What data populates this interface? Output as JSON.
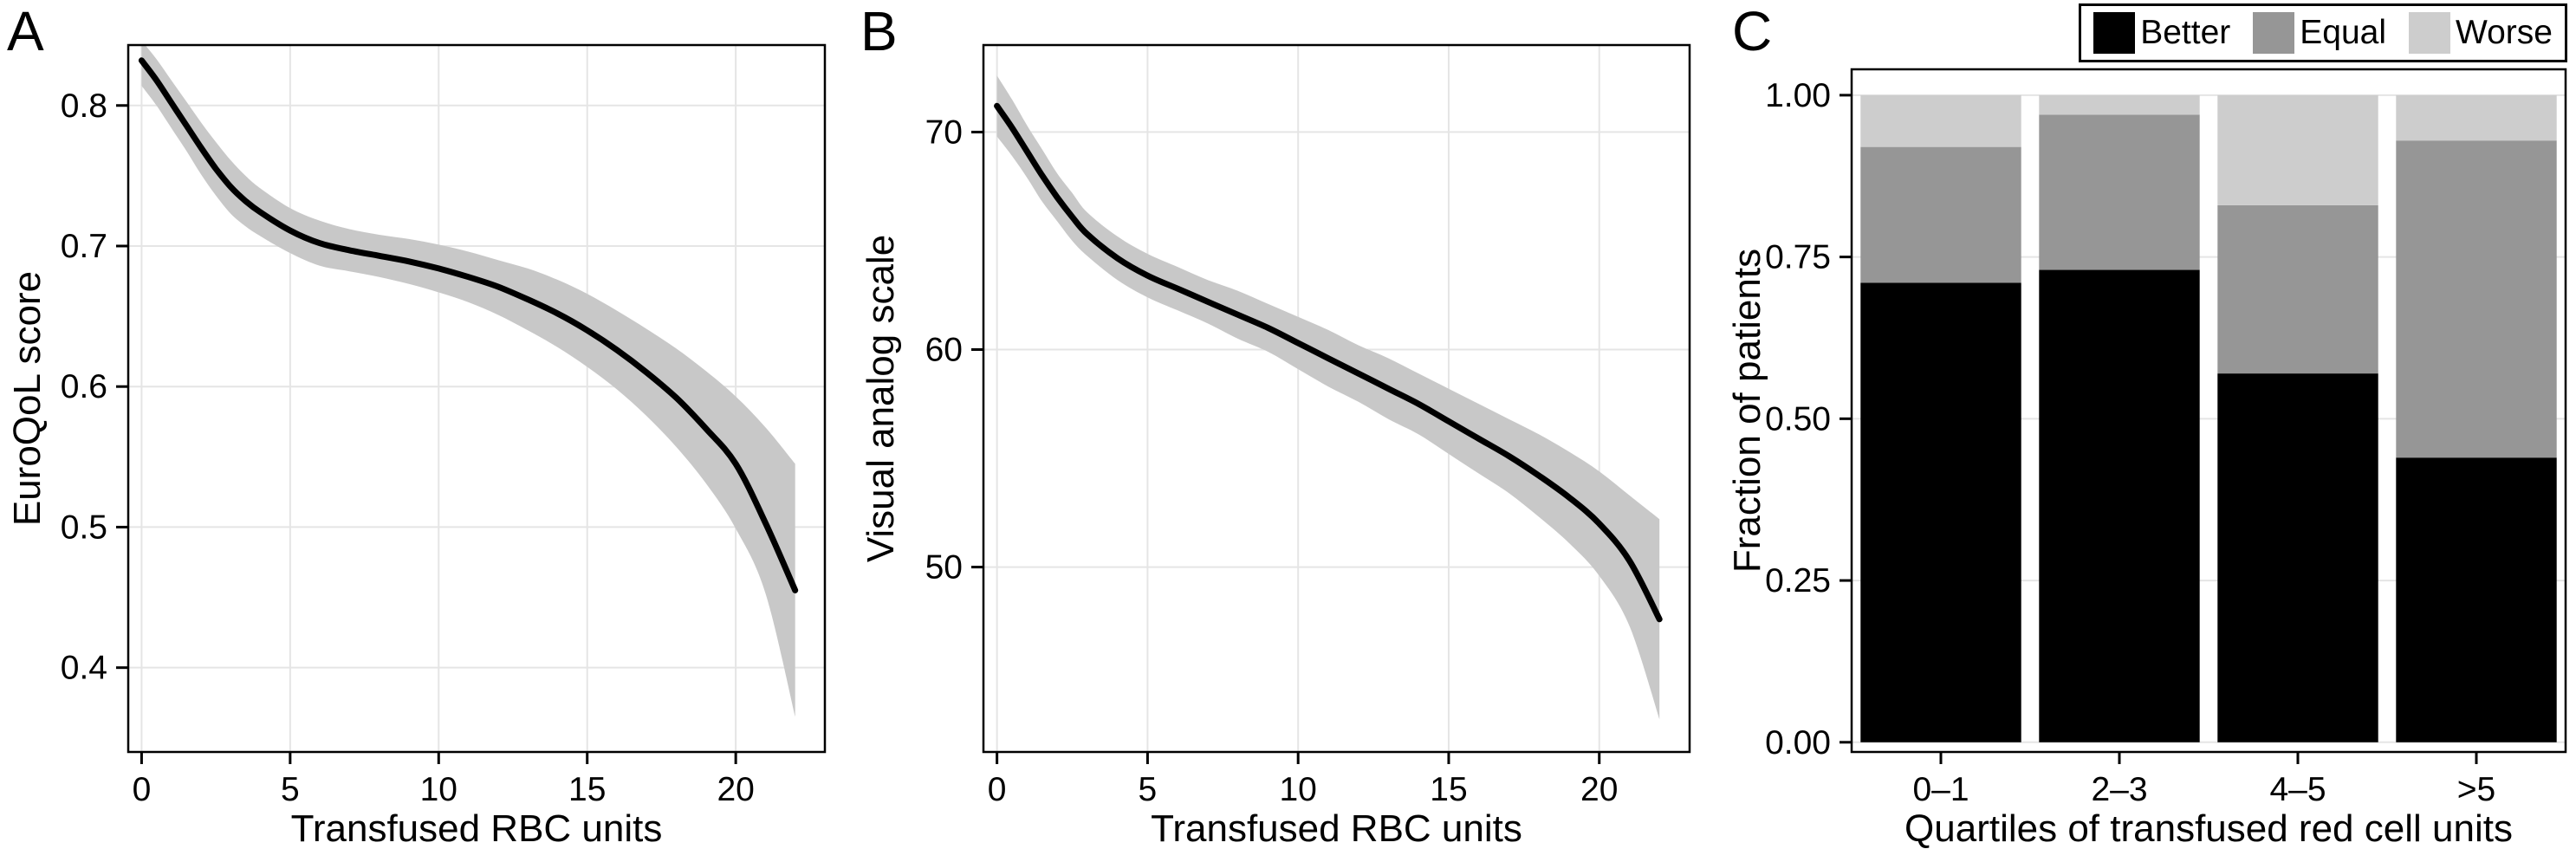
{
  "figure": {
    "panels": [
      {
        "label": "A"
      },
      {
        "label": "B"
      },
      {
        "label": "C"
      }
    ]
  },
  "chart_data": [
    {
      "type": "line",
      "panel": "A",
      "xlabel": "Transfused RBC units",
      "ylabel": "EuroQoL score",
      "xlim": [
        -0.45,
        23
      ],
      "ylim": [
        0.34,
        0.843
      ],
      "xticks": [
        0,
        5,
        10,
        15,
        20
      ],
      "yticks": [
        0.4,
        0.5,
        0.6,
        0.7,
        0.8
      ],
      "ytick_labels": [
        "0.4",
        "0.5",
        "0.6",
        "0.7",
        "0.8"
      ],
      "grid": true,
      "legend": "none",
      "line_color": "#000000",
      "band_color": "#c8c8c8",
      "x": [
        0,
        0.5,
        1,
        1.5,
        2,
        2.5,
        3,
        3.5,
        4,
        5,
        6,
        7,
        8,
        9,
        10,
        11,
        12,
        13,
        14,
        15,
        16,
        17,
        18,
        19,
        20,
        21,
        22
      ],
      "y": [
        0.832,
        0.818,
        0.802,
        0.786,
        0.77,
        0.755,
        0.742,
        0.732,
        0.724,
        0.711,
        0.702,
        0.697,
        0.693,
        0.689,
        0.684,
        0.678,
        0.671,
        0.662,
        0.652,
        0.64,
        0.626,
        0.61,
        0.592,
        0.57,
        0.545,
        0.503,
        0.455
      ],
      "band_upper": [
        0.846,
        0.833,
        0.818,
        0.803,
        0.788,
        0.774,
        0.761,
        0.75,
        0.741,
        0.727,
        0.718,
        0.712,
        0.708,
        0.705,
        0.701,
        0.696,
        0.69,
        0.684,
        0.676,
        0.666,
        0.654,
        0.641,
        0.627,
        0.611,
        0.593,
        0.571,
        0.545
      ],
      "band_lower": [
        0.814,
        0.8,
        0.784,
        0.768,
        0.751,
        0.736,
        0.723,
        0.714,
        0.707,
        0.695,
        0.686,
        0.682,
        0.678,
        0.673,
        0.667,
        0.66,
        0.651,
        0.64,
        0.628,
        0.614,
        0.598,
        0.579,
        0.557,
        0.531,
        0.499,
        0.453,
        0.365
      ]
    },
    {
      "type": "line",
      "panel": "B",
      "xlabel": "Transfused RBC units",
      "ylabel": "Visual analog scale",
      "xlim": [
        -0.45,
        23
      ],
      "ylim": [
        41.5,
        74
      ],
      "xticks": [
        0,
        5,
        10,
        15,
        20
      ],
      "yticks": [
        50,
        60,
        70
      ],
      "ytick_labels": [
        "50",
        "60",
        "70"
      ],
      "grid": true,
      "legend": "none",
      "line_color": "#000000",
      "band_color": "#c8c8c8",
      "x": [
        0,
        0.5,
        1,
        1.5,
        2,
        2.5,
        3,
        4,
        5,
        6,
        7,
        8,
        9,
        10,
        11,
        12,
        13,
        14,
        15,
        16,
        17,
        18,
        19,
        20,
        21,
        22
      ],
      "y": [
        71.2,
        70.2,
        69.1,
        68.0,
        67.0,
        66.1,
        65.3,
        64.2,
        63.4,
        62.8,
        62.2,
        61.6,
        61.0,
        60.3,
        59.6,
        58.9,
        58.2,
        57.5,
        56.7,
        55.9,
        55.1,
        54.2,
        53.2,
        52.0,
        50.3,
        47.6
      ],
      "band_upper": [
        72.6,
        71.5,
        70.3,
        69.2,
        68.1,
        67.2,
        66.3,
        65.2,
        64.4,
        63.8,
        63.2,
        62.7,
        62.1,
        61.5,
        60.9,
        60.2,
        59.6,
        58.9,
        58.2,
        57.5,
        56.8,
        56.1,
        55.3,
        54.4,
        53.3,
        52.2
      ],
      "band_lower": [
        69.8,
        68.9,
        67.9,
        66.8,
        65.9,
        65.0,
        64.3,
        63.2,
        62.4,
        61.8,
        61.2,
        60.5,
        59.9,
        59.1,
        58.3,
        57.6,
        56.8,
        56.1,
        55.2,
        54.3,
        53.4,
        52.3,
        51.1,
        49.6,
        47.3,
        43.0
      ]
    },
    {
      "type": "stacked_bar",
      "panel": "C",
      "xlabel": "Quartiles of transfused red cell units",
      "ylabel": "Fraction of patients",
      "categories": [
        "0–1",
        "2–3",
        "4–5",
        ">5"
      ],
      "series": [
        {
          "name": "Better",
          "color": "#000000",
          "values": [
            0.71,
            0.73,
            0.57,
            0.44
          ]
        },
        {
          "name": "Equal",
          "color": "#969696",
          "values": [
            0.21,
            0.24,
            0.26,
            0.49
          ]
        },
        {
          "name": "Worse",
          "color": "#cdcdcd",
          "values": [
            0.08,
            0.03,
            0.17,
            0.07
          ]
        }
      ],
      "ylim": [
        -0.015,
        1.04
      ],
      "yticks": [
        0,
        0.25,
        0.5,
        0.75,
        1
      ],
      "ytick_labels": [
        "0.00",
        "0.25",
        "0.50",
        "0.75",
        "1.00"
      ],
      "grid": true,
      "legend_position": "top-right",
      "bar_width_fraction": 0.9
    }
  ]
}
